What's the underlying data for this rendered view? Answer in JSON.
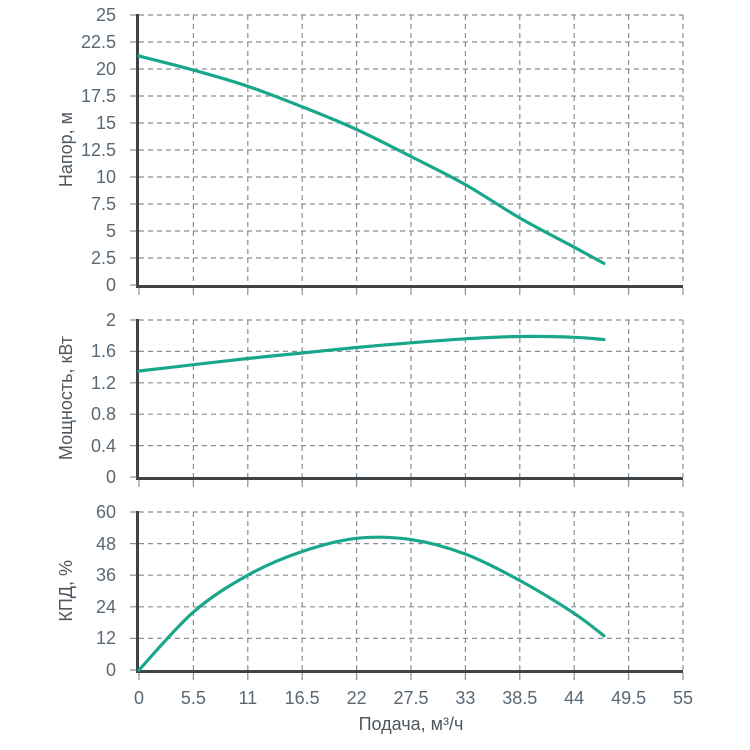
{
  "figure": {
    "background": "#ffffff",
    "curve_color": "#19a78c",
    "axis_color": "#3e4347",
    "grid_color": "#8a8f93",
    "tick_label_color": "#5a6874",
    "axis_title_color": "#4d5760"
  },
  "x_axis": {
    "label": "Подача, м³/ч",
    "min": 0,
    "max": 55,
    "tick_values": [
      0,
      5.5,
      11,
      16.5,
      22,
      27.5,
      33,
      38.5,
      44,
      49.5,
      55
    ],
    "tick_labels": [
      "0",
      "5.5",
      "11",
      "16.5",
      "22",
      "27.5",
      "33",
      "38.5",
      "44",
      "49.5",
      "55"
    ]
  },
  "chart_data": [
    {
      "type": "line",
      "ylabel": "Напор, м",
      "xlabel": "Подача, м³/ч",
      "ylim": [
        0,
        25
      ],
      "ytick_values": [
        0,
        2.5,
        5,
        7.5,
        10,
        12.5,
        15,
        17.5,
        20,
        22.5,
        25
      ],
      "ytick_labels": [
        "0",
        "2.5",
        "5",
        "7.5",
        "10",
        "12.5",
        "15",
        "17.5",
        "20",
        "22.5",
        "25"
      ],
      "grid": "dashed",
      "legend": "none",
      "series": [
        {
          "name": "head",
          "x": [
            0,
            5.5,
            11,
            16.5,
            22,
            27.5,
            33,
            38.5,
            44,
            47
          ],
          "y": [
            21.2,
            19.9,
            18.4,
            16.5,
            14.4,
            11.9,
            9.3,
            6.2,
            3.5,
            2.0
          ]
        }
      ]
    },
    {
      "type": "line",
      "ylabel": "Мощность, кВт",
      "xlabel": "Подача, м³/ч",
      "ylim": [
        0,
        2
      ],
      "ytick_values": [
        0,
        0.4,
        0.8,
        1.2,
        1.6,
        2
      ],
      "ytick_labels": [
        "0",
        "0.4",
        "0.8",
        "1.2",
        "1.6",
        "2"
      ],
      "grid": "dashed",
      "legend": "none",
      "series": [
        {
          "name": "power",
          "x": [
            0,
            5.5,
            11,
            16.5,
            22,
            27.5,
            33,
            38.5,
            44,
            47
          ],
          "y": [
            1.35,
            1.43,
            1.51,
            1.58,
            1.65,
            1.71,
            1.76,
            1.79,
            1.78,
            1.75
          ]
        }
      ]
    },
    {
      "type": "line",
      "ylabel": "КПД, %",
      "xlabel": "Подача, м³/ч",
      "ylim": [
        0,
        60
      ],
      "ytick_values": [
        0,
        12,
        24,
        36,
        48,
        60
      ],
      "ytick_labels": [
        "0",
        "12",
        "24",
        "36",
        "48",
        "60"
      ],
      "grid": "dashed",
      "legend": "none",
      "series": [
        {
          "name": "efficiency",
          "x": [
            0,
            5.5,
            11,
            16.5,
            22,
            27.5,
            33,
            38.5,
            44,
            47
          ],
          "y": [
            0,
            22,
            36,
            45,
            50,
            49.5,
            44,
            34,
            21.5,
            13
          ]
        }
      ]
    }
  ]
}
